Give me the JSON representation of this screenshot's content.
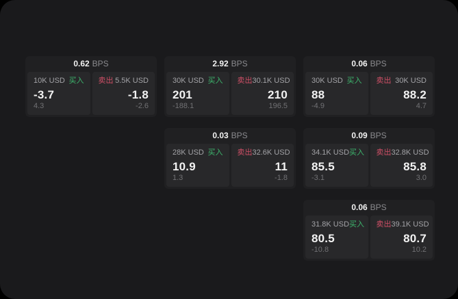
{
  "labels": {
    "buy": "买入",
    "sell": "卖出",
    "bps_unit": "BPS"
  },
  "colors": {
    "page_bg": "#1a1a1c",
    "card_bg": "#202022",
    "panel_bg": "#28282a",
    "buy_green": "#3db56d",
    "sell_red": "#cf4f66",
    "text_primary": "#f2f2f2",
    "text_label": "#a3a3a7",
    "text_muted": "#8a8a8e",
    "text_dim": "#717174"
  },
  "cards": [
    {
      "bps": "0.62",
      "buy": {
        "amount": "10K USD",
        "price": "-3.7",
        "delta": "4.3"
      },
      "sell": {
        "amount": "5.5K USD",
        "price": "-1.8",
        "delta": "-2.6"
      }
    },
    {
      "bps": "2.92",
      "buy": {
        "amount": "30K USD",
        "price": "201",
        "delta": "-188.1"
      },
      "sell": {
        "amount": "30.1K USD",
        "price": "210",
        "delta": "196.5"
      }
    },
    {
      "bps": "0.06",
      "buy": {
        "amount": "30K USD",
        "price": "88",
        "delta": "-4.9"
      },
      "sell": {
        "amount": "30K USD",
        "price": "88.2",
        "delta": "4.7"
      }
    },
    {
      "bps": "0.03",
      "buy": {
        "amount": "28K USD",
        "price": "10.9",
        "delta": "1.3"
      },
      "sell": {
        "amount": "32.6K USD",
        "price": "11",
        "delta": "-1.8"
      }
    },
    {
      "bps": "0.09",
      "buy": {
        "amount": "34.1K USD",
        "price": "85.5",
        "delta": "-3.1"
      },
      "sell": {
        "amount": "32.8K USD",
        "price": "85.8",
        "delta": "3.0"
      }
    },
    {
      "bps": "0.06",
      "buy": {
        "amount": "31.8K USD",
        "price": "80.5",
        "delta": "-10.8"
      },
      "sell": {
        "amount": "39.1K USD",
        "price": "80.7",
        "delta": "10.2"
      }
    }
  ]
}
